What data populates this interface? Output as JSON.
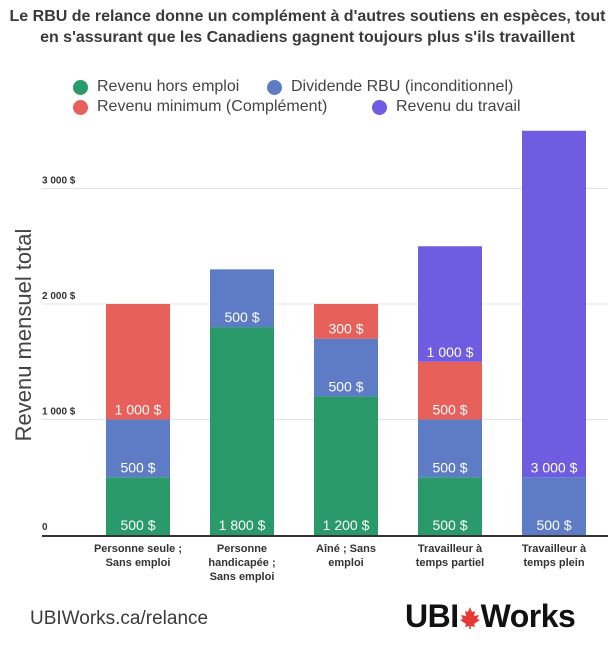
{
  "chart_data": {
    "type": "bar",
    "stacked": true,
    "title": "Le RBU de relance donne un complément à d'autres soutiens en espèces, tout en s'assurant que les Canadiens gagnent toujours plus s'ils travaillent",
    "ylabel": "Revenu mensuel total",
    "ylim": [
      0,
      3500
    ],
    "yticks": [
      0,
      1000,
      2000,
      3000
    ],
    "ytick_labels": [
      "0",
      "1 000 $",
      "2 000 $",
      "3 000 $"
    ],
    "grid": true,
    "legend_position": "top",
    "categories": [
      "Personne seule ; Sans emploi",
      "Personne handicapée ; Sans emploi",
      "Aîné ; Sans emploi",
      "Travailleur à temps partiel",
      "Travailleur à temps plein"
    ],
    "category_lines": [
      [
        "Personne seule ;",
        "Sans emploi"
      ],
      [
        "Personne",
        "handicapée ;",
        "Sans emploi"
      ],
      [
        "Aîné ; Sans",
        "emploi"
      ],
      [
        "Travailleur à",
        "temps partiel"
      ],
      [
        "Travailleur à",
        "temps plein"
      ]
    ],
    "series": [
      {
        "name": "Revenu hors emploi",
        "color": "#2a9a6b",
        "values": [
          500,
          1800,
          1200,
          500,
          0
        ],
        "labels": [
          "500 $",
          "1 800 $",
          "1 200 $",
          "500 $",
          ""
        ]
      },
      {
        "name": "Dividende RBU (inconditionnel)",
        "color": "#5e7cc6",
        "values": [
          500,
          500,
          500,
          500,
          500
        ],
        "labels": [
          "500 $",
          "500 $",
          "500 $",
          "500 $",
          "500 $"
        ]
      },
      {
        "name": "Revenu minimum (Complément)",
        "color": "#e8605a",
        "values": [
          1000,
          0,
          300,
          500,
          0
        ],
        "labels": [
          "1 000 $",
          "",
          "300 $",
          "500 $",
          ""
        ]
      },
      {
        "name": "Revenu du travail",
        "color": "#6f5ce0",
        "values": [
          0,
          0,
          0,
          1000,
          3000
        ],
        "labels": [
          "",
          "",
          "",
          "1 000 $",
          "3 000 $"
        ]
      }
    ]
  },
  "footer": {
    "url": "UBIWorks.ca/relance",
    "logo_part1": "UBI",
    "logo_part2": "Works",
    "logo_icon": "maple-leaf-icon",
    "leaf_color": "#e53935"
  }
}
